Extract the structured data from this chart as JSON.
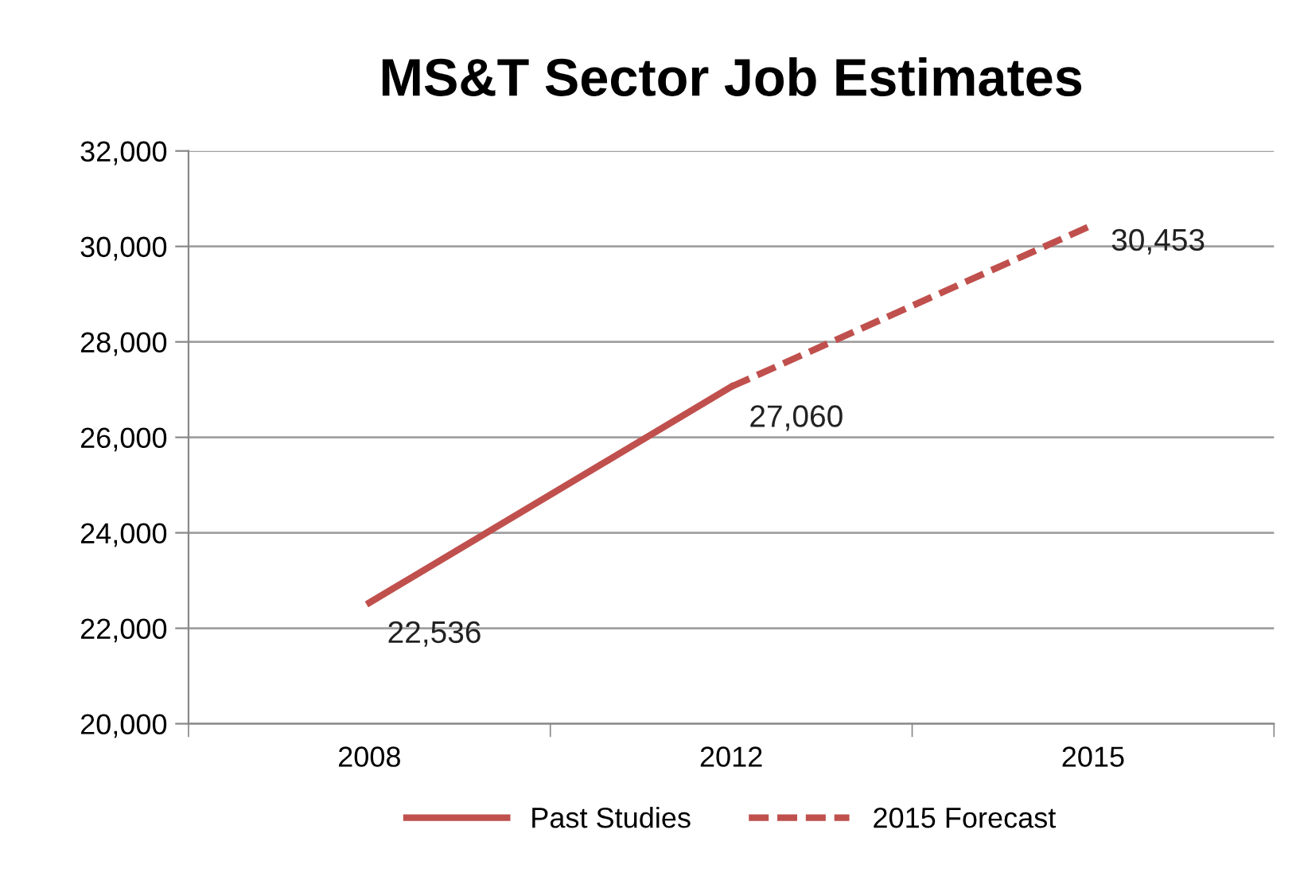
{
  "chart_data": {
    "type": "line",
    "title": "MS&T Sector Job Estimates",
    "categories": [
      "2008",
      "2012",
      "2015"
    ],
    "series": [
      {
        "name": "Past Studies",
        "color": "#c0504d",
        "line_style": "solid",
        "values": [
          22536,
          27060,
          null
        ],
        "value_labels": [
          "22,536",
          "27,060",
          null
        ]
      },
      {
        "name": "2015 Forecast",
        "color": "#c0504d",
        "line_style": "dashed",
        "values": [
          null,
          27060,
          30453
        ],
        "value_labels": [
          null,
          null,
          "30,453"
        ]
      }
    ],
    "ylim": [
      20000,
      32000
    ],
    "yticks": [
      {
        "value": 20000,
        "label": "20,000"
      },
      {
        "value": 22000,
        "label": "22,000"
      },
      {
        "value": 24000,
        "label": "24,000"
      },
      {
        "value": 26000,
        "label": "26,000"
      },
      {
        "value": 28000,
        "label": "28,000"
      },
      {
        "value": 30000,
        "label": "30,000"
      },
      {
        "value": 32000,
        "label": "32,000"
      }
    ],
    "grid": "y",
    "legend": "bottom",
    "marker": "none"
  }
}
